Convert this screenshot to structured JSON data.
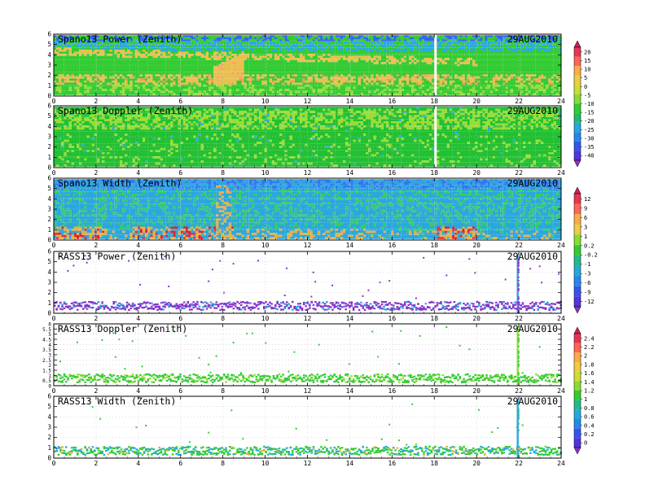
{
  "chart_data": [
    {
      "type": "heatmap",
      "title": "Spano13 Power (Zenith)",
      "date": "29AUG2010",
      "x_ticks": [
        "0",
        "2",
        "4",
        "6",
        "8",
        "10",
        "12",
        "14",
        "16",
        "18",
        "20",
        "22",
        "24"
      ],
      "y_ticks": [
        "0",
        "1",
        "2",
        "3",
        "4",
        "5",
        "6"
      ],
      "xlim": [
        0,
        24
      ],
      "ylim": [
        0,
        6
      ],
      "colorbar": {
        "labels": [
          "20",
          "15",
          "10",
          "5",
          "0",
          "-5",
          "-10",
          "-15",
          "-20",
          "-25",
          "-30",
          "-35",
          "-40"
        ],
        "shared_with_panel": "Spano13 Doppler (Zenith)"
      },
      "pattern": "spano_power",
      "colors": {
        "dominant": "#33cc33",
        "high": "#e8c050",
        "low": "#2aaadd"
      }
    },
    {
      "type": "heatmap",
      "title": "Spano13 Doppler (Zenith)",
      "date": "29AUG2010",
      "x_ticks": [
        "0",
        "2",
        "4",
        "6",
        "8",
        "10",
        "12",
        "14",
        "16",
        "18",
        "20",
        "22",
        "24"
      ],
      "y_ticks": [
        "0",
        "1",
        "2",
        "3",
        "4",
        "5",
        "6"
      ],
      "xlim": [
        0,
        24
      ],
      "ylim": [
        0,
        6
      ],
      "pattern": "spano_doppler",
      "colors": {
        "dominant": "#22c033",
        "high": "#99dd33"
      }
    },
    {
      "type": "heatmap",
      "title": "Spano13 Width (Zenith)",
      "date": "29AUG2010",
      "x_ticks": [
        "0",
        "2",
        "4",
        "6",
        "8",
        "10",
        "12",
        "14",
        "16",
        "18",
        "20",
        "22",
        "24"
      ],
      "y_ticks": [
        "0",
        "1",
        "2",
        "3",
        "4",
        "5",
        "6"
      ],
      "xlim": [
        0,
        24
      ],
      "ylim": [
        0,
        6
      ],
      "colorbar": {
        "labels": [
          "12",
          "9",
          "6",
          "3",
          "1",
          "0.2",
          "-0.2",
          "-1",
          "-3",
          "-6",
          "-9",
          "-12"
        ],
        "shared_with_panel": "RASS13 Power (Zenith)"
      },
      "pattern": "spano_width",
      "colors": {
        "dominant": "#2aa8dd",
        "high": "#dd2233"
      }
    },
    {
      "type": "scatter",
      "title": "RASS13 Power (Zenith)",
      "date": "29AUG2010",
      "x_ticks": [
        "0",
        "2",
        "4",
        "6",
        "8",
        "10",
        "12",
        "14",
        "16",
        "18",
        "20",
        "22",
        "24"
      ],
      "y_ticks": [
        "0",
        "1",
        "2",
        "3",
        "4",
        "5",
        "6"
      ],
      "xlim": [
        0,
        24
      ],
      "ylim": [
        0,
        6
      ],
      "pattern": "rass_power",
      "colors": {
        "dominant": "#8833cc",
        "accent": "#22aadd"
      }
    },
    {
      "type": "scatter",
      "title": "RASS13 Doppler (Zenith)",
      "date": "29AUG2010",
      "x_ticks": [
        "0",
        "2",
        "4",
        "6",
        "8",
        "10",
        "12",
        "14",
        "16",
        "18",
        "20",
        "22",
        "24"
      ],
      "y_ticks": [
        "0",
        "0.5",
        "1",
        "1.5",
        "2",
        "2.5",
        "3",
        "3.5",
        "4",
        "4.5",
        "5",
        "5.5",
        "6"
      ],
      "xlim": [
        0,
        24
      ],
      "ylim": [
        0,
        6
      ],
      "colorbar": {
        "labels": [
          "2.4",
          "2.2",
          "2",
          "1.8",
          "1.6",
          "1.4",
          "1.2",
          "1",
          "0.8",
          "0.6",
          "0.4",
          "0.2",
          "0"
        ],
        "shared_with_panel": "RASS13 Width (Zenith)"
      },
      "pattern": "rass_doppler",
      "colors": {
        "dominant": "#33cc33",
        "accent": "#99dd33"
      }
    },
    {
      "type": "scatter",
      "title": "RASS13 Width (Zenith)",
      "date": "29AUG2010",
      "x_ticks": [
        "0",
        "2",
        "4",
        "6",
        "8",
        "10",
        "12",
        "14",
        "16",
        "18",
        "20",
        "22",
        "24"
      ],
      "y_ticks": [
        "0",
        "1",
        "2",
        "3",
        "4",
        "5",
        "6"
      ],
      "xlim": [
        0,
        24
      ],
      "ylim": [
        0,
        6
      ],
      "pattern": "rass_width",
      "colors": {
        "dominant": "#33cc33",
        "accent": "#22aadd"
      }
    }
  ]
}
